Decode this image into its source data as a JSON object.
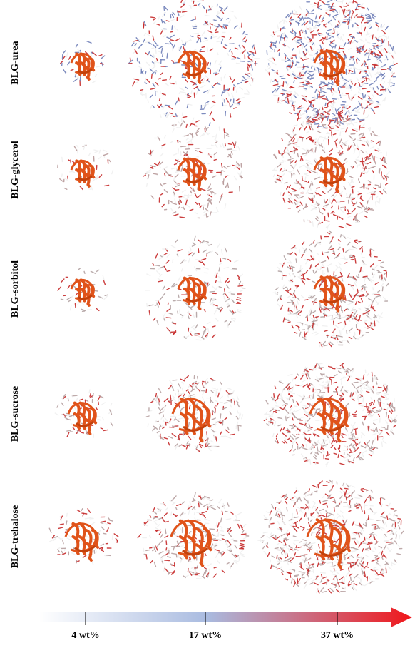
{
  "rows": [
    {
      "label": "BLG-urea",
      "solvent_color": "#6f7fb8",
      "molecule": "urea"
    },
    {
      "label": "BLG-glycerol",
      "solvent_color": "#b89a9a",
      "molecule": "glycerol"
    },
    {
      "label": "BLG-sorbitol",
      "solvent_color": "#b3a3a3",
      "molecule": "sorbitol"
    },
    {
      "label": "BLG-sucrose",
      "solvent_color": "#b8a2a2",
      "molecule": "sucrose"
    },
    {
      "label": "BLG-trehalose",
      "solvent_color": "#b8a0a0",
      "molecule": "trehalose"
    }
  ],
  "columns": [
    {
      "label": "4 wt%"
    },
    {
      "label": "17 wt%"
    },
    {
      "label": "37 wt%"
    }
  ],
  "colors": {
    "protein": "#e0531a",
    "gradient_start": "#ffffff",
    "gradient_mid": "#a9bbe0",
    "gradient_end": "#f0161a"
  }
}
